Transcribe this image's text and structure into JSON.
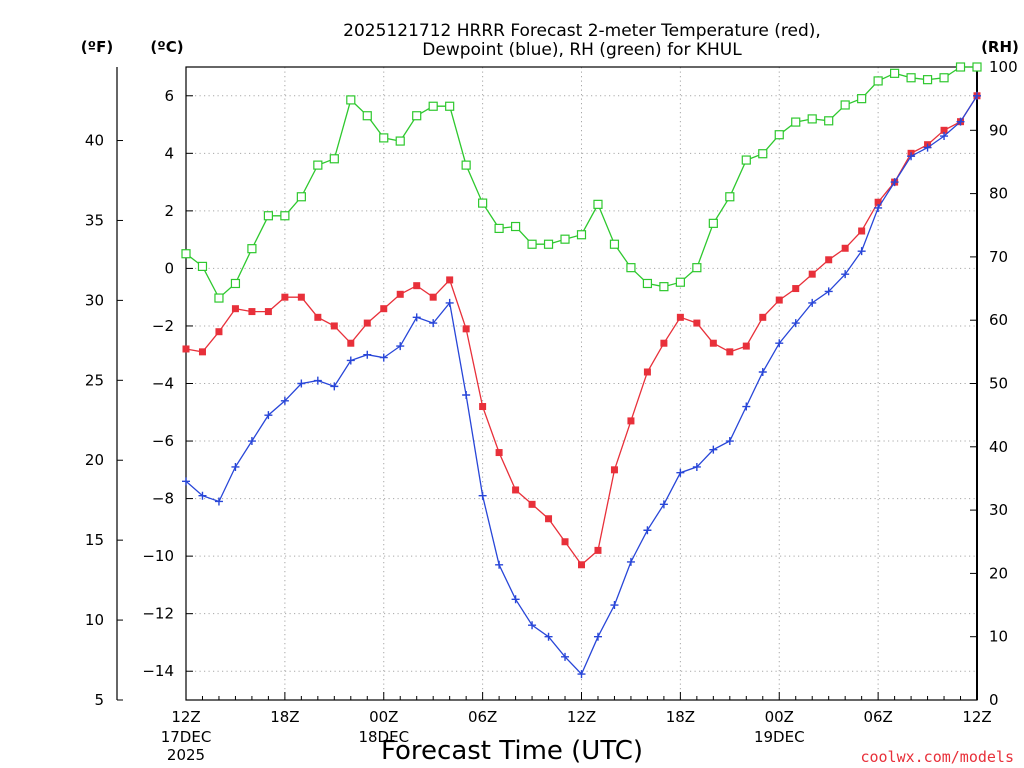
{
  "chart_data": {
    "type": "line",
    "title_lines": [
      "2025121712 HRRR Forecast 2-meter Temperature (red),",
      "Dewpoint (blue), RH (green) for KHUL"
    ],
    "xlabel": "Forecast Time (UTC)",
    "credit": "coolwx.com/models",
    "unit_labels": {
      "fahrenheit": "(ºF)",
      "celsius": "(ºC)",
      "rh": "(RH)"
    },
    "x_range": [
      0,
      48
    ],
    "x_unit": "hours after 2025-12-17 12Z",
    "x_ticks": [
      {
        "x": 0,
        "label": "12Z",
        "sub": [
          "17DEC",
          "2025"
        ]
      },
      {
        "x": 6,
        "label": "18Z",
        "sub": []
      },
      {
        "x": 12,
        "label": "00Z",
        "sub": [
          "18DEC"
        ]
      },
      {
        "x": 18,
        "label": "06Z",
        "sub": []
      },
      {
        "x": 24,
        "label": "12Z",
        "sub": []
      },
      {
        "x": 30,
        "label": "18Z",
        "sub": []
      },
      {
        "x": 36,
        "label": "00Z",
        "sub": [
          "19DEC"
        ]
      },
      {
        "x": 42,
        "label": "06Z",
        "sub": []
      },
      {
        "x": 48,
        "label": "12Z",
        "sub": []
      }
    ],
    "y_celsius": {
      "ylim": [
        -15,
        7
      ],
      "ticks": [
        6,
        4,
        2,
        0,
        -2,
        -4,
        -6,
        -8,
        -10,
        -12,
        -14
      ],
      "tick_labels": [
        "6",
        "4",
        "2",
        "0",
        "−2",
        "−4",
        "−6",
        "−8",
        "−10",
        "−12",
        "−14"
      ]
    },
    "y_fahrenheit": {
      "ticks": [
        40,
        35,
        30,
        25,
        20,
        15,
        10,
        5
      ],
      "tick_labels": [
        "40",
        "35",
        "30",
        "25",
        "20",
        "15",
        "10",
        "5"
      ]
    },
    "y_rh": {
      "ylim": [
        0,
        100
      ],
      "ticks": [
        100,
        90,
        80,
        70,
        60,
        50,
        40,
        30,
        20,
        10,
        0
      ],
      "tick_labels": [
        "100",
        "90",
        "80",
        "70",
        "60",
        "50",
        "40",
        "30",
        "20",
        "10",
        "0"
      ]
    },
    "grid": true,
    "series": [
      {
        "key": "temperature",
        "axis": "celsius",
        "color": "#e8303a",
        "marker": "filled-square",
        "values": [
          -2.8,
          -2.9,
          -2.2,
          -1.4,
          -1.5,
          -1.5,
          -1.0,
          -1.0,
          -1.7,
          -2.0,
          -2.6,
          -1.9,
          -1.4,
          -0.9,
          -0.6,
          -1.0,
          -0.4,
          -2.1,
          -4.8,
          -6.4,
          -7.7,
          -8.2,
          -8.7,
          -9.5,
          -10.3,
          -9.8,
          -7.0,
          -5.3,
          -3.6,
          -2.6,
          -1.7,
          -1.9,
          -2.6,
          -2.9,
          -2.7,
          -1.7,
          -1.1,
          -0.7,
          -0.2,
          0.3,
          0.7,
          1.3,
          2.3,
          3.0,
          4.0,
          4.3,
          4.8,
          5.1,
          6.0
        ]
      },
      {
        "key": "dewpoint",
        "axis": "celsius",
        "color": "#2846d8",
        "marker": "plus",
        "values": [
          -7.4,
          -7.9,
          -8.1,
          -6.9,
          -6.0,
          -5.1,
          -4.6,
          -4.0,
          -3.9,
          -4.1,
          -3.2,
          -3.0,
          -3.1,
          -2.7,
          -1.7,
          -1.9,
          -1.2,
          -4.4,
          -7.9,
          -10.3,
          -11.5,
          -12.4,
          -12.8,
          -13.5,
          -14.1,
          -12.8,
          -11.7,
          -10.2,
          -9.1,
          -8.2,
          -7.1,
          -6.9,
          -6.3,
          -6.0,
          -4.8,
          -3.6,
          -2.6,
          -1.9,
          -1.2,
          -0.8,
          -0.2,
          0.6,
          2.1,
          3.0,
          3.9,
          4.2,
          4.6,
          5.1,
          6.0
        ]
      },
      {
        "key": "rh",
        "axis": "rh",
        "color": "#2ec82e",
        "marker": "open-square",
        "values": [
          70.5,
          68.5,
          63.5,
          65.8,
          71.3,
          76.5,
          76.5,
          79.5,
          84.5,
          85.5,
          94.8,
          92.3,
          88.8,
          88.3,
          92.3,
          93.8,
          93.8,
          84.5,
          78.5,
          74.5,
          74.8,
          72.0,
          72.0,
          72.8,
          73.5,
          78.3,
          72.0,
          68.3,
          65.8,
          65.3,
          66.0,
          68.3,
          75.3,
          79.5,
          85.3,
          86.3,
          89.3,
          91.3,
          91.8,
          91.5,
          94.0,
          95.0,
          97.8,
          99.0,
          98.3,
          98.0,
          98.3,
          100,
          100
        ]
      }
    ]
  }
}
